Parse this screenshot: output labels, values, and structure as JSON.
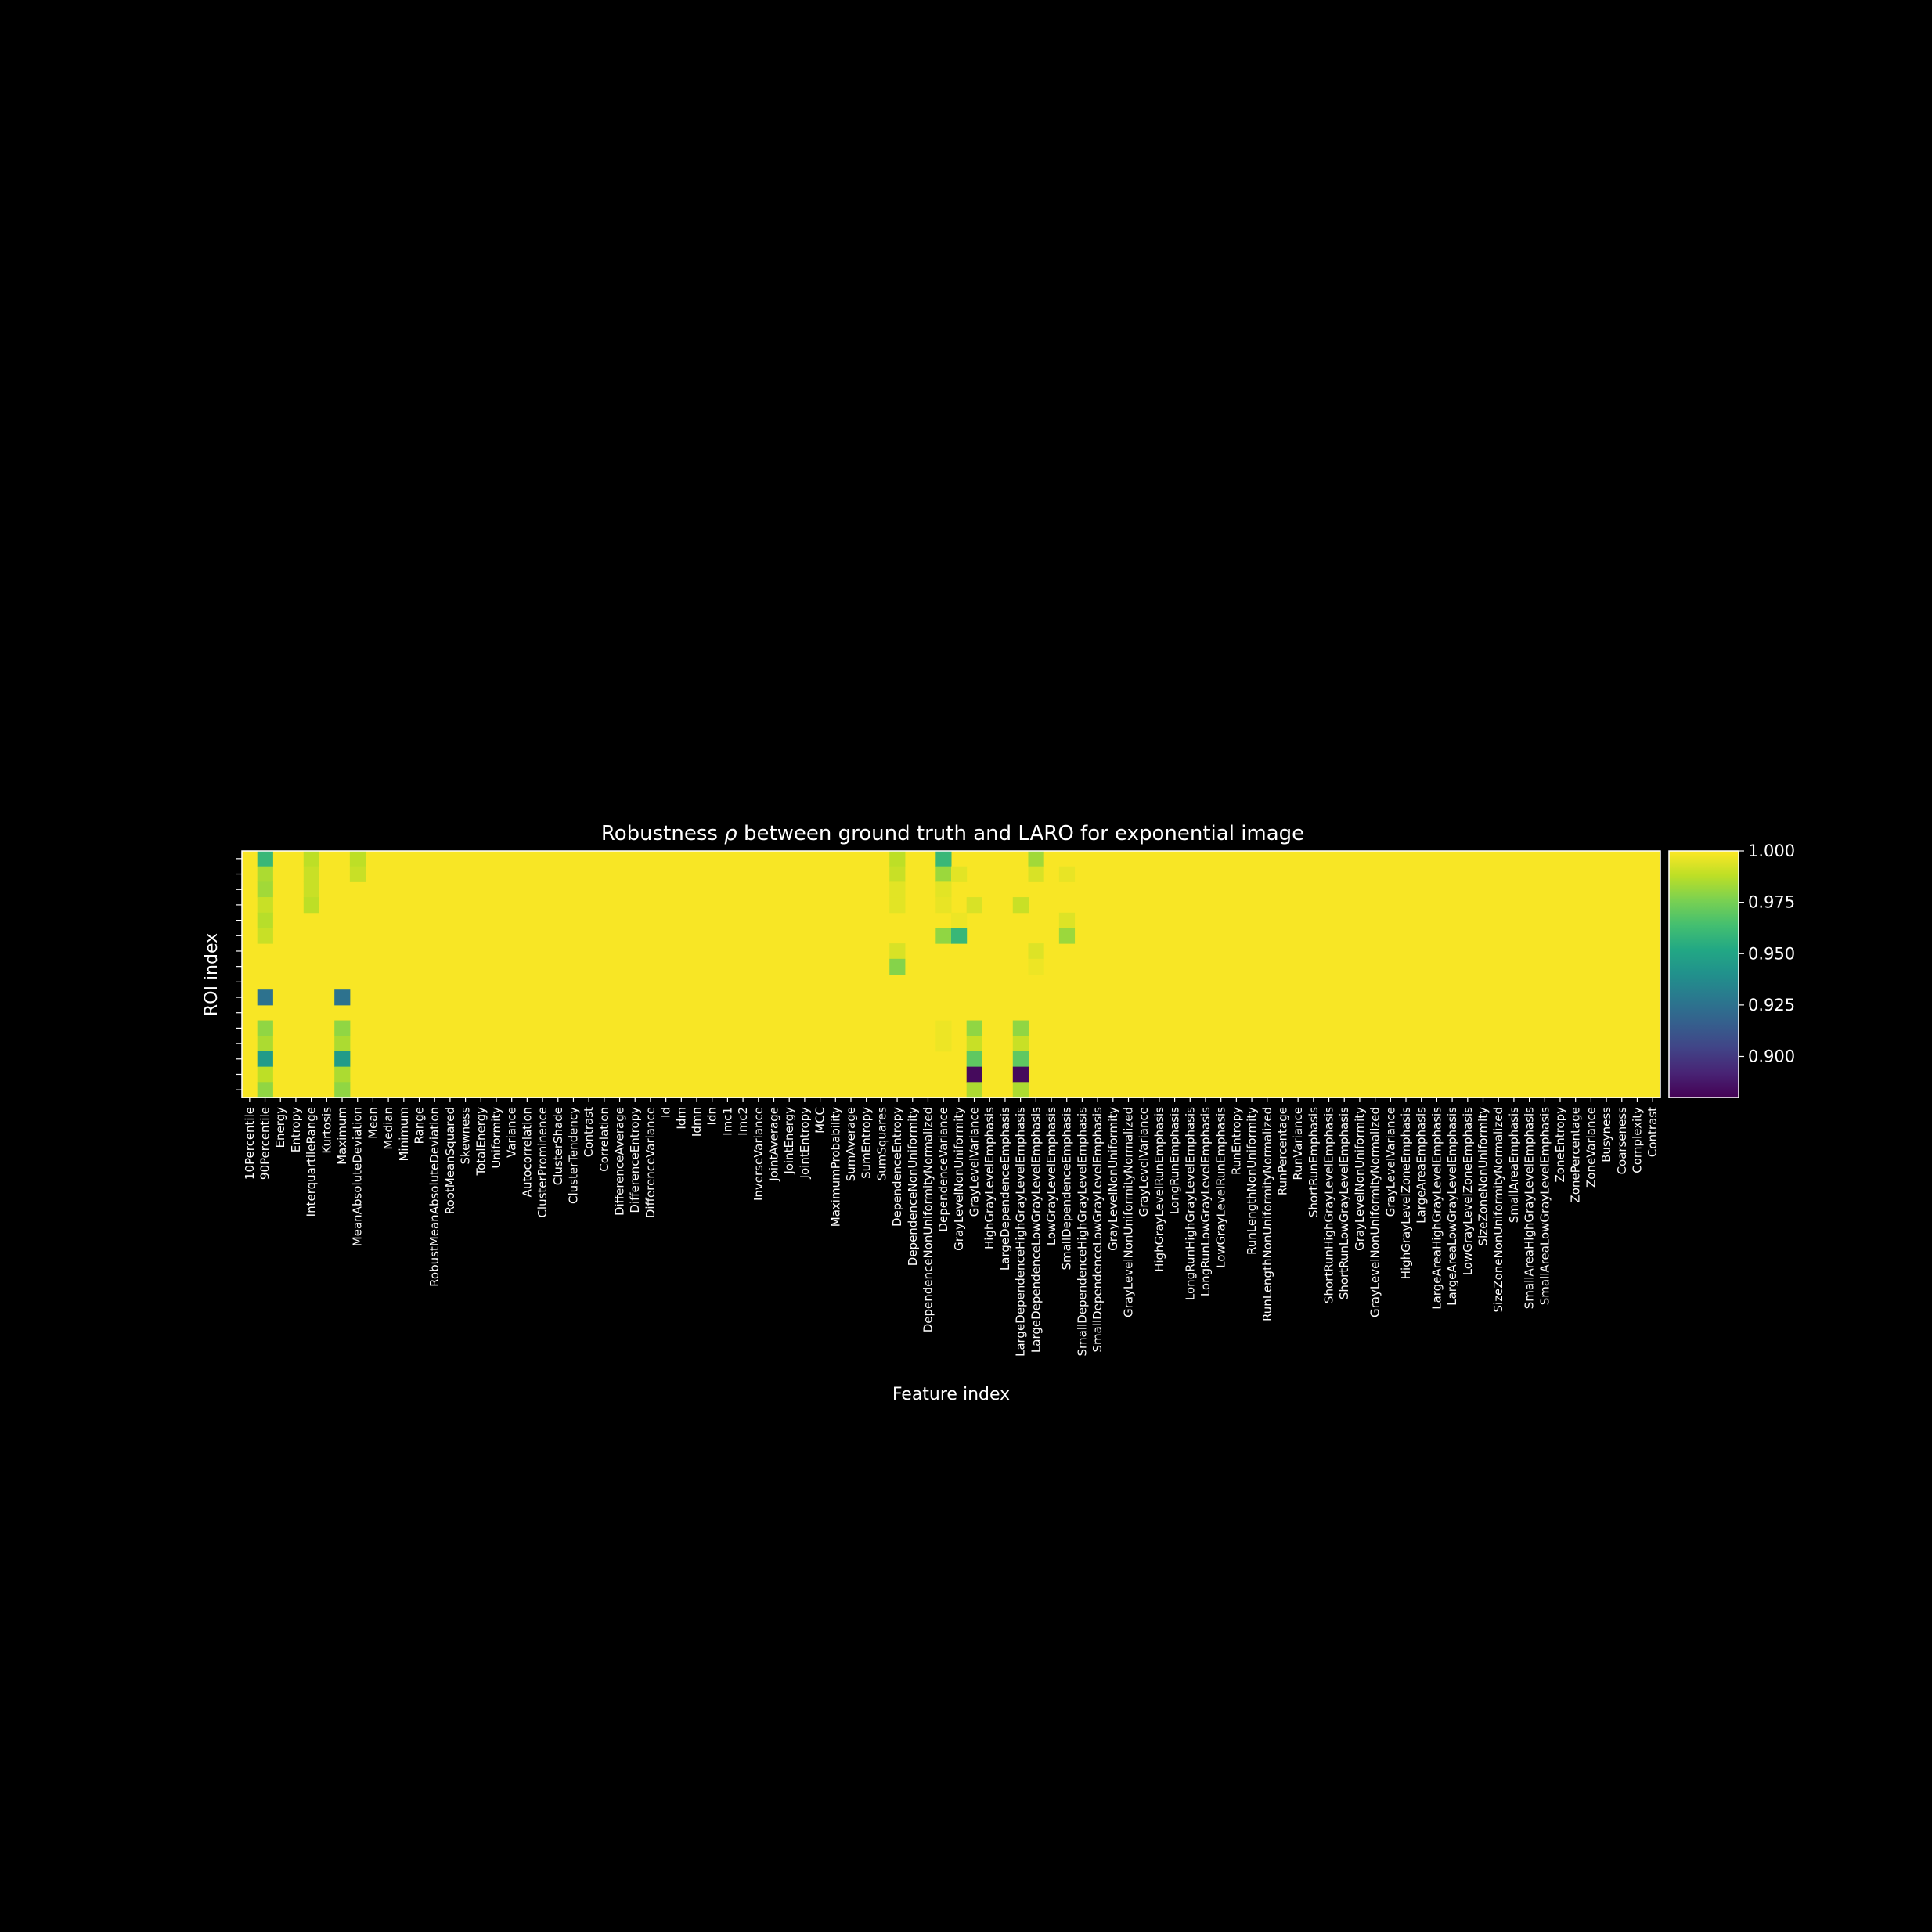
{
  "chart_data": {
    "type": "heatmap",
    "title_prefix": "Robustness ",
    "title_symbol": "ρ",
    "title_suffix": " between ground truth and LARO for exponential image",
    "xlabel": "Feature index",
    "ylabel": "ROI index",
    "colormap": "viridis",
    "vmin": 0.88,
    "vmax": 1.0,
    "default_value": 0.999,
    "n_rows": 16,
    "colorbar_ticks": [
      "1.000",
      "0.975",
      "0.950",
      "0.925",
      "0.900"
    ],
    "features": [
      "10Percentile",
      "90Percentile",
      "Energy",
      "Entropy",
      "InterquartileRange",
      "Kurtosis",
      "Maximum",
      "MeanAbsoluteDeviation",
      "Mean",
      "Median",
      "Minimum",
      "Range",
      "RobustMeanAbsoluteDeviation",
      "RootMeanSquared",
      "Skewness",
      "TotalEnergy",
      "Uniformity",
      "Variance",
      "Autocorrelation",
      "ClusterProminence",
      "ClusterShade",
      "ClusterTendency",
      "Contrast",
      "Correlation",
      "DifferenceAverage",
      "DifferenceEntropy",
      "DifferenceVariance",
      "Id",
      "Idm",
      "Idmn",
      "Idn",
      "Imc1",
      "Imc2",
      "InverseVariance",
      "JointAverage",
      "JointEnergy",
      "JointEntropy",
      "MCC",
      "MaximumProbability",
      "SumAverage",
      "SumEntropy",
      "SumSquares",
      "DependenceEntropy",
      "DependenceNonUniformity",
      "DependenceNonUniformityNormalized",
      "DependenceVariance",
      "GrayLevelNonUniformity",
      "GrayLevelVariance",
      "HighGrayLevelEmphasis",
      "LargeDependenceEmphasis",
      "LargeDependenceHighGrayLevelEmphasis",
      "LargeDependenceLowGrayLevelEmphasis",
      "LowGrayLevelEmphasis",
      "SmallDependenceEmphasis",
      "SmallDependenceHighGrayLevelEmphasis",
      "SmallDependenceLowGrayLevelEmphasis",
      "GrayLevelNonUniformity",
      "GrayLevelNonUniformityNormalized",
      "GrayLevelVariance",
      "HighGrayLevelRunEmphasis",
      "LongRunEmphasis",
      "LongRunHighGrayLevelEmphasis",
      "LongRunLowGrayLevelEmphasis",
      "LowGrayLevelRunEmphasis",
      "RunEntropy",
      "RunLengthNonUniformity",
      "RunLengthNonUniformityNormalized",
      "RunPercentage",
      "RunVariance",
      "ShortRunEmphasis",
      "ShortRunHighGrayLevelEmphasis",
      "ShortRunLowGrayLevelEmphasis",
      "GrayLevelNonUniformity",
      "GrayLevelNonUniformityNormalized",
      "GrayLevelVariance",
      "HighGrayLevelZoneEmphasis",
      "LargeAreaEmphasis",
      "LargeAreaHighGrayLevelEmphasis",
      "LargeAreaLowGrayLevelEmphasis",
      "LowGrayLevelZoneEmphasis",
      "SizeZoneNonUniformity",
      "SizeZoneNonUniformityNormalized",
      "SmallAreaEmphasis",
      "SmallAreaHighGrayLevelEmphasis",
      "SmallAreaLowGrayLevelEmphasis",
      "ZoneEntropy",
      "ZonePercentage",
      "ZoneVariance",
      "Busyness",
      "Coarseness",
      "Complexity",
      "Contrast"
    ],
    "highlighted_cells": [
      {
        "row": 0,
        "col": 1,
        "value": 0.96
      },
      {
        "row": 1,
        "col": 1,
        "value": 0.985
      },
      {
        "row": 2,
        "col": 1,
        "value": 0.983
      },
      {
        "row": 3,
        "col": 1,
        "value": 0.99
      },
      {
        "row": 4,
        "col": 1,
        "value": 0.987
      },
      {
        "row": 5,
        "col": 1,
        "value": 0.99
      },
      {
        "row": 9,
        "col": 1,
        "value": 0.925
      },
      {
        "row": 11,
        "col": 1,
        "value": 0.98
      },
      {
        "row": 12,
        "col": 1,
        "value": 0.985
      },
      {
        "row": 13,
        "col": 1,
        "value": 0.945
      },
      {
        "row": 14,
        "col": 1,
        "value": 0.988
      },
      {
        "row": 15,
        "col": 1,
        "value": 0.98
      },
      {
        "row": 0,
        "col": 4,
        "value": 0.988
      },
      {
        "row": 1,
        "col": 4,
        "value": 0.99
      },
      {
        "row": 2,
        "col": 4,
        "value": 0.99
      },
      {
        "row": 3,
        "col": 4,
        "value": 0.988
      },
      {
        "row": 9,
        "col": 6,
        "value": 0.925
      },
      {
        "row": 11,
        "col": 6,
        "value": 0.98
      },
      {
        "row": 12,
        "col": 6,
        "value": 0.985
      },
      {
        "row": 13,
        "col": 6,
        "value": 0.945
      },
      {
        "row": 14,
        "col": 6,
        "value": 0.985
      },
      {
        "row": 15,
        "col": 6,
        "value": 0.98
      },
      {
        "row": 0,
        "col": 7,
        "value": 0.988
      },
      {
        "row": 1,
        "col": 7,
        "value": 0.99
      },
      {
        "row": 0,
        "col": 42,
        "value": 0.988
      },
      {
        "row": 1,
        "col": 42,
        "value": 0.99
      },
      {
        "row": 2,
        "col": 42,
        "value": 0.995
      },
      {
        "row": 3,
        "col": 42,
        "value": 0.995
      },
      {
        "row": 6,
        "col": 42,
        "value": 0.993
      },
      {
        "row": 7,
        "col": 42,
        "value": 0.978
      },
      {
        "row": 0,
        "col": 45,
        "value": 0.96
      },
      {
        "row": 1,
        "col": 45,
        "value": 0.982
      },
      {
        "row": 2,
        "col": 45,
        "value": 0.995
      },
      {
        "row": 3,
        "col": 45,
        "value": 0.996
      },
      {
        "row": 5,
        "col": 45,
        "value": 0.98
      },
      {
        "row": 11,
        "col": 45,
        "value": 0.997
      },
      {
        "row": 12,
        "col": 45,
        "value": 0.997
      },
      {
        "row": 1,
        "col": 46,
        "value": 0.995
      },
      {
        "row": 4,
        "col": 46,
        "value": 0.997
      },
      {
        "row": 5,
        "col": 46,
        "value": 0.96
      },
      {
        "row": 3,
        "col": 47,
        "value": 0.993
      },
      {
        "row": 11,
        "col": 47,
        "value": 0.98
      },
      {
        "row": 12,
        "col": 47,
        "value": 0.99
      },
      {
        "row": 13,
        "col": 47,
        "value": 0.97
      },
      {
        "row": 14,
        "col": 47,
        "value": 0.883
      },
      {
        "row": 15,
        "col": 47,
        "value": 0.985
      },
      {
        "row": 3,
        "col": 50,
        "value": 0.99
      },
      {
        "row": 11,
        "col": 50,
        "value": 0.98
      },
      {
        "row": 12,
        "col": 50,
        "value": 0.99
      },
      {
        "row": 13,
        "col": 50,
        "value": 0.97
      },
      {
        "row": 14,
        "col": 50,
        "value": 0.883
      },
      {
        "row": 15,
        "col": 50,
        "value": 0.985
      },
      {
        "row": 0,
        "col": 51,
        "value": 0.983
      },
      {
        "row": 1,
        "col": 51,
        "value": 0.993
      },
      {
        "row": 6,
        "col": 51,
        "value": 0.994
      },
      {
        "row": 7,
        "col": 51,
        "value": 0.997
      },
      {
        "row": 1,
        "col": 53,
        "value": 0.996
      },
      {
        "row": 4,
        "col": 53,
        "value": 0.994
      },
      {
        "row": 5,
        "col": 53,
        "value": 0.982
      }
    ]
  }
}
